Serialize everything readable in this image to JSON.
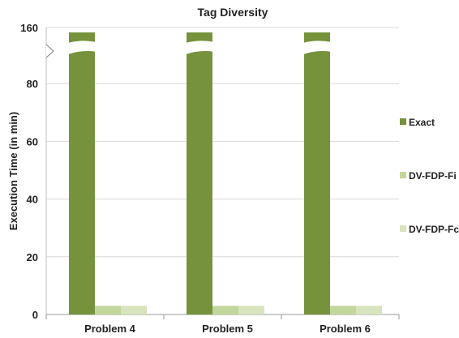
{
  "chart_data": {
    "type": "bar",
    "title": "Tag Diversity",
    "xlabel": "",
    "ylabel": "Execution Time (in min)",
    "categories": [
      "Problem 4",
      "Problem 5",
      "Problem 6"
    ],
    "y_ticks": [
      "0",
      "20",
      "40",
      "60",
      "80",
      "160"
    ],
    "ylim": [
      0,
      160
    ],
    "axis_break": {
      "lower_top": 90,
      "upper_value": 160
    },
    "grid": true,
    "legend_position": "right",
    "series": [
      {
        "name": "Exact",
        "values": [
          160,
          160,
          160
        ],
        "color": "#76923c"
      },
      {
        "name": "DV-FDP-Fi",
        "values": [
          3,
          3,
          3
        ],
        "color": "#c3d69b"
      },
      {
        "name": "DV-FDP-Fc",
        "values": [
          3,
          3,
          3
        ],
        "color": "#d7e4bd"
      }
    ]
  }
}
